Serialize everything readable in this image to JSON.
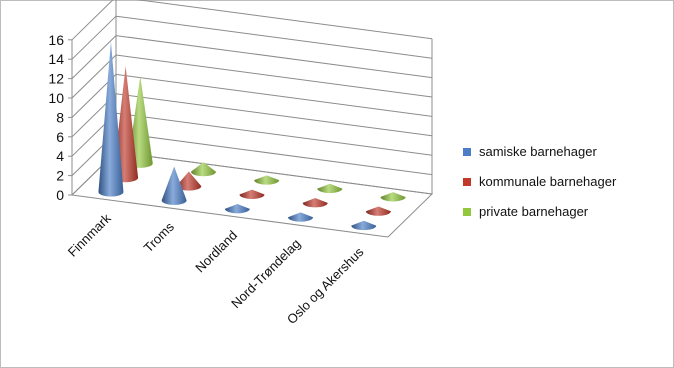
{
  "chart_data": {
    "type": "bar",
    "style": "3d-cone",
    "categories": [
      "Finnmark",
      "Troms",
      "Nordland",
      "Nord-Trøndelag",
      "Oslo og Akershus"
    ],
    "series": [
      {
        "name": "samiske barnehager",
        "values": [
          15.5,
          3.5,
          0.5,
          0.5,
          0.5
        ],
        "color": "#4a7ec8"
      },
      {
        "name": "kommunale barnehager",
        "values": [
          11.5,
          1.5,
          0.5,
          0.5,
          0.5
        ],
        "color": "#c0392b"
      },
      {
        "name": "private barnehager",
        "values": [
          9,
          1,
          0.5,
          0.5,
          0.5
        ],
        "color": "#93c83e"
      }
    ],
    "yticks": [
      0,
      2,
      4,
      6,
      8,
      10,
      12,
      14,
      16
    ],
    "ylim": [
      0,
      16
    ],
    "grid": true,
    "legend_position": "right"
  }
}
